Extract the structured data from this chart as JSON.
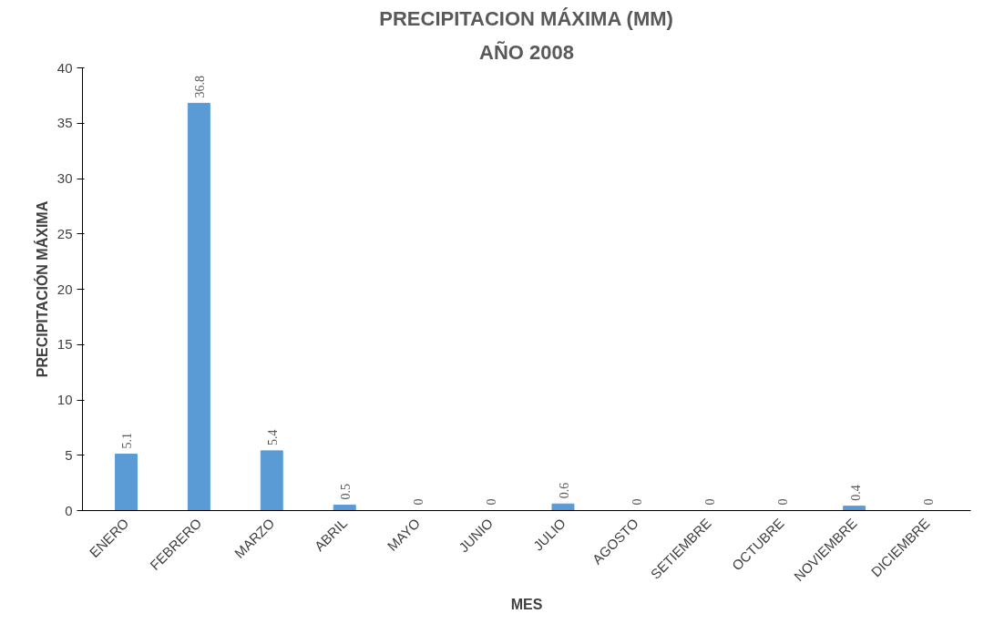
{
  "chart_data": {
    "type": "bar",
    "title": "PRECIPITACION MÁXIMA (MM)",
    "subtitle": "AÑO 2008",
    "xlabel": "MES",
    "ylabel": "PRECIPITACIÓN MÁXIMA",
    "categories": [
      "ENERO",
      "FEBRERO",
      "MARZO",
      "ABRIL",
      "MAYO",
      "JUNIO",
      "JULIO",
      "AGOSTO",
      "SETIEMBRE",
      "OCTUBRE",
      "NOVIEMBRE",
      "DICIEMBRE"
    ],
    "values": [
      5.1,
      36.8,
      5.4,
      0.5,
      0,
      0,
      0.6,
      0,
      0,
      0,
      0.4,
      0
    ],
    "color": "#5b9bd5",
    "ylim": [
      0,
      40
    ],
    "yticks": [
      0,
      5,
      10,
      15,
      20,
      25,
      30,
      35,
      40
    ],
    "grid": false,
    "data_labels": true
  }
}
